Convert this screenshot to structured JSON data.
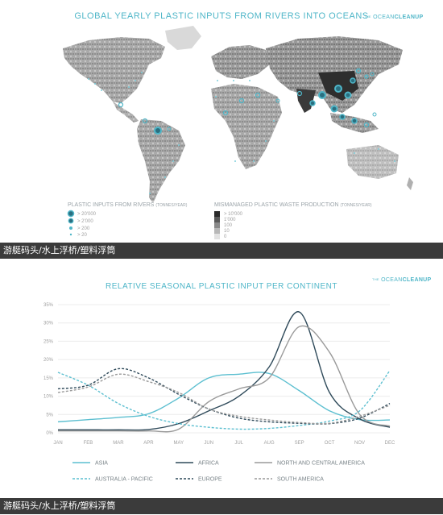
{
  "map_panel": {
    "title": "GLOBAL YEARLY PLASTIC INPUTS FROM RIVERS INTO OCEANS",
    "brand": "THE OCEAN CLEANUP",
    "brand_prefix": "THE",
    "brand_main": "OCEAN",
    "brand_strong": "CLEANUP",
    "legend_rivers_title": "PLASTIC INPUTS FROM RIVERS",
    "legend_rivers_unit": "(TONNES/YEAR)",
    "legend_rivers_items": [
      "> 20'000",
      "> 2'000",
      "> 200",
      "> 20"
    ],
    "legend_waste_title": "MISMANAGED PLASTIC WASTE PRODUCTION",
    "legend_waste_unit": "(TONNES/YEAR)",
    "legend_waste_items": [
      "> 10'000",
      "1'000",
      "100",
      "10",
      "0"
    ]
  },
  "caption_top": "游艇码头/水上浮桥/塑料浮筒",
  "caption_bottom": "游艇码头/水上浮桥/塑料浮筒",
  "chart_panel": {
    "brand_prefix": "THE",
    "brand_main": "OCEAN",
    "brand_strong": "CLEANUP"
  },
  "colors": {
    "accent": "#4fb6c8",
    "caption_bg": "#3b3b3b",
    "asia": "#5cbfd0",
    "africa": "#2f4a5a",
    "north_central_america": "#9a9a9a",
    "australia_pacific": "#5cbfd0",
    "europe": "#2f4a5a",
    "south_america": "#9a9a9a"
  },
  "chart_data": {
    "type": "line",
    "title": "RELATIVE SEASONAL PLASTIC INPUT PER CONTINENT",
    "categories": [
      "JAN",
      "FEB",
      "MAR",
      "APR",
      "MAY",
      "JUN",
      "JUL",
      "AUG",
      "SEP",
      "OCT",
      "NOV",
      "DEC"
    ],
    "yticks": [
      "0%",
      "5%",
      "10%",
      "15%",
      "20%",
      "25%",
      "30%",
      "35%"
    ],
    "ylim": [
      0,
      35
    ],
    "grid": true,
    "legend_position": "bottom",
    "series": [
      {
        "name": "ASIA",
        "style": "solid",
        "values": [
          3.0,
          3.6,
          4.2,
          5.2,
          9.5,
          15.0,
          16.0,
          16.2,
          11.5,
          6.0,
          3.6,
          3.5
        ]
      },
      {
        "name": "AFRICA",
        "style": "solid",
        "values": [
          0.8,
          0.8,
          0.8,
          0.9,
          2.5,
          6.0,
          10.0,
          18.0,
          33.0,
          11.0,
          3.8,
          1.5
        ]
      },
      {
        "name": "NORTH AND CENTRAL AMERICA",
        "style": "solid",
        "values": [
          0.5,
          0.5,
          0.5,
          0.5,
          1.0,
          8.5,
          12.0,
          15.0,
          29.0,
          22.0,
          5.0,
          1.8
        ]
      },
      {
        "name": "AUSTRALIA - PACIFIC",
        "style": "dashed",
        "values": [
          16.5,
          13.0,
          8.0,
          4.5,
          2.5,
          1.5,
          1.0,
          1.2,
          2.0,
          3.2,
          6.0,
          17.0
        ]
      },
      {
        "name": "EUROPE",
        "style": "dashed",
        "values": [
          12.0,
          13.0,
          17.5,
          15.0,
          10.5,
          6.5,
          4.0,
          3.0,
          2.6,
          2.5,
          4.0,
          8.0
        ]
      },
      {
        "name": "SOUTH AMERICA",
        "style": "dashed",
        "values": [
          11.0,
          12.5,
          16.0,
          14.0,
          11.0,
          6.5,
          4.5,
          3.5,
          2.8,
          2.6,
          4.5,
          7.5
        ]
      }
    ]
  }
}
